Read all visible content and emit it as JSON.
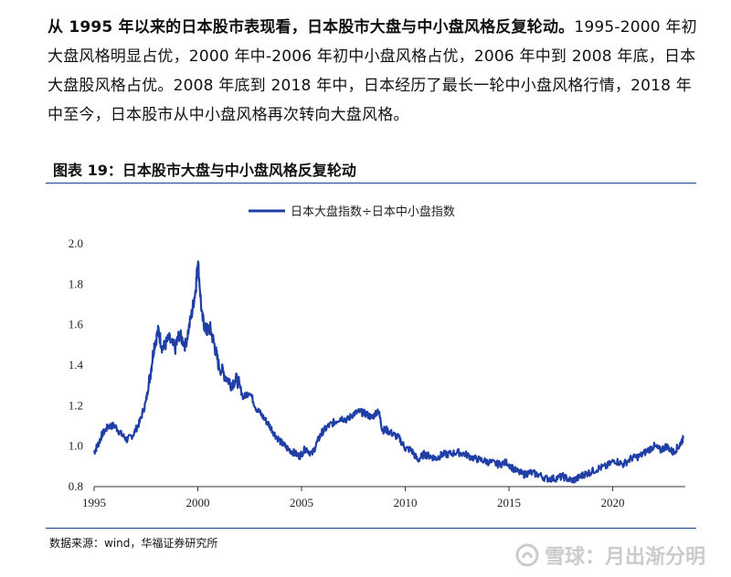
{
  "paragraph": {
    "lead": "从 1995 年以来的日本股市表现看，日本股市大盘与中小盘风格反复轮动。",
    "body": "1995-2000 年初大盘风格明显占优，2000 年中-2006 年初中小盘风格占优，2006 年中到 2008 年底，日本大盘股风格占优。2008 年底到 2018 年中，日本经历了最长一轮中小盘风格行情，2018 年中至今，日本股市从中小盘风格再次转向大盘风格。"
  },
  "figure": {
    "title": "图表 19：日本股市大盘与中小盘风格反复轮动",
    "source": "数据来源：wind，华福证券研究所"
  },
  "watermark": {
    "text": "雪球：月出渐分明",
    "icon": "snowball-logo-icon"
  },
  "colors": {
    "series": "#1f3fa6",
    "rule": "#1f3f8f"
  },
  "chart_data": {
    "type": "line",
    "legend_position": "top-center",
    "grid": false,
    "ylim": [
      0.8,
      2.0
    ],
    "xlim": [
      1995,
      2023.5
    ],
    "y_ticks": [
      "0.8",
      "1.0",
      "1.2",
      "1.4",
      "1.6",
      "1.8",
      "2.0"
    ],
    "x_ticks": [
      "1995",
      "2000",
      "2005",
      "2010",
      "2015",
      "2020"
    ],
    "series": [
      {
        "name": "日本大盘指数÷日本中小盘指数",
        "x": [
          1995.0,
          1995.2,
          1995.4,
          1995.7,
          1996.0,
          1996.3,
          1996.6,
          1996.9,
          1997.2,
          1997.5,
          1997.7,
          1997.9,
          1998.1,
          1998.3,
          1998.6,
          1998.9,
          1999.1,
          1999.4,
          1999.7,
          1999.9,
          2000.0,
          2000.2,
          2000.4,
          2000.6,
          2000.8,
          2001.0,
          2001.3,
          2001.6,
          2001.9,
          2002.2,
          2002.5,
          2002.8,
          2003.1,
          2003.4,
          2003.7,
          2004.0,
          2004.3,
          2004.6,
          2004.9,
          2005.2,
          2005.5,
          2005.8,
          2006.0,
          2006.3,
          2006.6,
          2006.9,
          2007.2,
          2007.5,
          2007.8,
          2008.1,
          2008.4,
          2008.7,
          2008.9,
          2009.1,
          2009.4,
          2009.7,
          2010.0,
          2010.3,
          2010.6,
          2010.9,
          2011.2,
          2011.5,
          2011.8,
          2012.1,
          2012.5,
          2012.9,
          2013.3,
          2013.7,
          2014.1,
          2014.5,
          2014.9,
          2015.3,
          2015.7,
          2016.0,
          2016.4,
          2016.8,
          2017.2,
          2017.6,
          2018.0,
          2018.3,
          2018.6,
          2018.9,
          2019.3,
          2019.7,
          2020.1,
          2020.5,
          2020.9,
          2021.3,
          2021.7,
          2022.0,
          2022.3,
          2022.6,
          2022.9,
          2023.2,
          2023.4
        ],
        "values": [
          0.97,
          1.01,
          1.06,
          1.1,
          1.1,
          1.06,
          1.03,
          1.06,
          1.12,
          1.22,
          1.35,
          1.5,
          1.57,
          1.48,
          1.53,
          1.48,
          1.55,
          1.5,
          1.65,
          1.78,
          1.92,
          1.64,
          1.57,
          1.58,
          1.5,
          1.4,
          1.35,
          1.31,
          1.33,
          1.24,
          1.27,
          1.19,
          1.15,
          1.11,
          1.06,
          1.02,
          0.99,
          0.97,
          0.95,
          0.99,
          0.96,
          1.03,
          1.07,
          1.1,
          1.12,
          1.14,
          1.13,
          1.16,
          1.17,
          1.16,
          1.14,
          1.18,
          1.08,
          1.08,
          1.06,
          1.04,
          0.99,
          0.98,
          0.93,
          0.96,
          0.95,
          0.94,
          0.96,
          0.96,
          0.97,
          0.96,
          0.94,
          0.93,
          0.92,
          0.91,
          0.92,
          0.88,
          0.86,
          0.87,
          0.86,
          0.84,
          0.84,
          0.85,
          0.83,
          0.84,
          0.86,
          0.87,
          0.89,
          0.9,
          0.93,
          0.91,
          0.94,
          0.95,
          0.98,
          1.0,
          0.98,
          1.0,
          0.97,
          1.0,
          1.04
        ]
      }
    ]
  }
}
